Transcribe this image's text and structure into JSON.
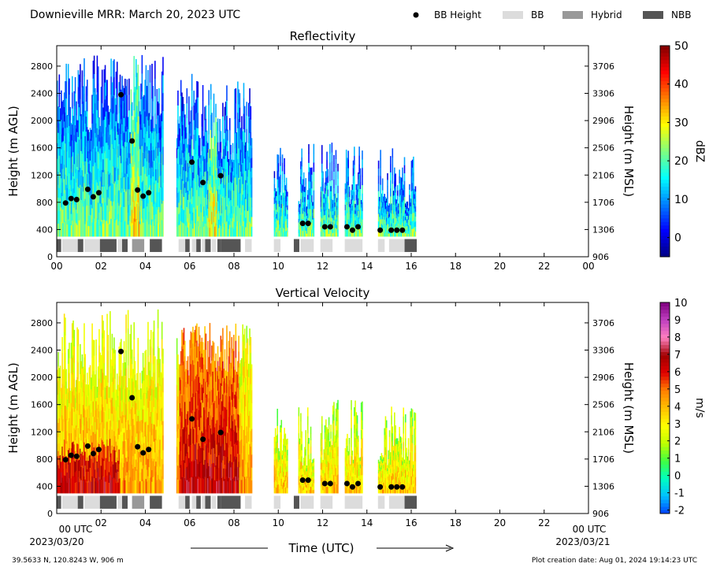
{
  "header": {
    "title": "Downieville MRR:  March 20, 2023 UTC",
    "legend": [
      {
        "label": "BB Height",
        "kind": "dot",
        "color": "#000000"
      },
      {
        "label": "BB",
        "kind": "box",
        "color": "#dcdcdc"
      },
      {
        "label": "Hybrid",
        "kind": "box",
        "color": "#999999"
      },
      {
        "label": "NBB",
        "kind": "box",
        "color": "#555555"
      }
    ]
  },
  "footer": {
    "location": "39.5633 N, 120.8243 W, 906 m",
    "creation": "Plot creation date: Aug 01, 2024 19:14:23 UTC",
    "start_time": "00 UTC",
    "start_date": "2023/03/20",
    "end_time": "00 UTC",
    "end_date": "2023/03/21",
    "time_label": "Time (UTC)"
  },
  "chart_data": [
    {
      "type": "heatmap",
      "title": "Reflectivity",
      "ylabel": "Height (m AGL)",
      "y2label": "Height (m MSL)",
      "x_ticklabels": [
        "00",
        "02",
        "04",
        "06",
        "08",
        "10",
        "12",
        "14",
        "16",
        "18",
        "20",
        "22",
        "00"
      ],
      "xlim": [
        0,
        24
      ],
      "ylim": [
        0,
        3100
      ],
      "y_ticks": [
        0,
        400,
        800,
        1200,
        1600,
        2000,
        2400,
        2800
      ],
      "y2_ticks": [
        906,
        1306,
        1706,
        2106,
        2506,
        2906,
        3306,
        3706
      ],
      "colorbar": {
        "label": "dBZ",
        "min": -5,
        "max": 50,
        "ticks": [
          0,
          10,
          20,
          30,
          40,
          50
        ],
        "colors": [
          "#00007f",
          "#0000ff",
          "#0080ff",
          "#00ffff",
          "#80ff80",
          "#ffff00",
          "#ff8000",
          "#ff0000",
          "#7f0000"
        ]
      },
      "segments": [
        [
          0,
          4.8
        ],
        [
          5.4,
          8.8
        ],
        [
          9.8,
          10.4
        ],
        [
          10.9,
          11.6
        ],
        [
          11.9,
          12.7
        ],
        [
          13.0,
          13.8
        ],
        [
          14.5,
          16.2
        ]
      ],
      "bb_height": [
        [
          0.4,
          790
        ],
        [
          0.65,
          855
        ],
        [
          0.9,
          840
        ],
        [
          1.4,
          990
        ],
        [
          1.65,
          880
        ],
        [
          1.9,
          940
        ],
        [
          2.9,
          2380
        ],
        [
          3.4,
          1700
        ],
        [
          3.65,
          980
        ],
        [
          3.9,
          890
        ],
        [
          4.15,
          940
        ],
        [
          6.1,
          1390
        ],
        [
          6.6,
          1090
        ],
        [
          7.4,
          1190
        ],
        [
          11.1,
          490
        ],
        [
          11.35,
          490
        ],
        [
          12.1,
          440
        ],
        [
          12.35,
          440
        ],
        [
          13.1,
          440
        ],
        [
          13.35,
          390
        ],
        [
          13.6,
          440
        ],
        [
          14.6,
          390
        ],
        [
          15.1,
          390
        ],
        [
          15.35,
          390
        ],
        [
          15.6,
          390
        ]
      ],
      "bb_flags": [
        {
          "s": 0,
          "e": 0.2,
          "t": "NBB"
        },
        {
          "s": 0.25,
          "e": 0.95,
          "t": "BB"
        },
        {
          "s": 0.95,
          "e": 1.2,
          "t": "NBB"
        },
        {
          "s": 1.25,
          "e": 1.95,
          "t": "BB"
        },
        {
          "s": 1.95,
          "e": 2.7,
          "t": "NBB"
        },
        {
          "s": 2.75,
          "e": 2.95,
          "t": "BB"
        },
        {
          "s": 2.95,
          "e": 3.2,
          "t": "NBB"
        },
        {
          "s": 3.4,
          "e": 3.95,
          "t": "Hybrid"
        },
        {
          "s": 4.2,
          "e": 4.75,
          "t": "NBB"
        },
        {
          "s": 5.5,
          "e": 5.8,
          "t": "BB"
        },
        {
          "s": 5.8,
          "e": 6.0,
          "t": "NBB"
        },
        {
          "s": 6.1,
          "e": 6.3,
          "t": "BB"
        },
        {
          "s": 6.3,
          "e": 6.5,
          "t": "NBB"
        },
        {
          "s": 6.55,
          "e": 6.7,
          "t": "BB"
        },
        {
          "s": 6.7,
          "e": 6.95,
          "t": "NBB"
        },
        {
          "s": 7.0,
          "e": 7.2,
          "t": "BB"
        },
        {
          "s": 7.25,
          "e": 7.4,
          "t": "NBB"
        },
        {
          "s": 7.4,
          "e": 8.3,
          "t": "NBB"
        },
        {
          "s": 8.5,
          "e": 8.8,
          "t": "BB"
        },
        {
          "s": 9.8,
          "e": 10.1,
          "t": "BB"
        },
        {
          "s": 10.7,
          "e": 10.95,
          "t": "NBB"
        },
        {
          "s": 11.0,
          "e": 11.6,
          "t": "BB"
        },
        {
          "s": 11.9,
          "e": 12.45,
          "t": "BB"
        },
        {
          "s": 13.0,
          "e": 13.8,
          "t": "BB"
        },
        {
          "s": 14.5,
          "e": 14.8,
          "t": "BB"
        },
        {
          "s": 15.0,
          "e": 15.7,
          "t": "BB"
        },
        {
          "s": 15.7,
          "e": 16.25,
          "t": "NBB"
        }
      ]
    },
    {
      "type": "heatmap",
      "title": "Vertical Velocity",
      "ylabel": "Height (m AGL)",
      "y2label": "Height (m MSL)",
      "x_ticklabels": [
        "",
        "02",
        "04",
        "06",
        "08",
        "10",
        "12",
        "14",
        "16",
        "18",
        "20",
        "22",
        ""
      ],
      "xlim": [
        0,
        24
      ],
      "ylim": [
        0,
        3100
      ],
      "y_ticks": [
        0,
        400,
        800,
        1200,
        1600,
        2000,
        2400,
        2800
      ],
      "y2_ticks": [
        906,
        1306,
        1706,
        2106,
        2506,
        2906,
        3306,
        3706
      ],
      "colorbar": {
        "label": "m/s",
        "min": -2.2,
        "max": 10,
        "ticks": [
          -2,
          -1,
          0,
          1,
          2,
          3,
          4,
          5,
          6,
          7,
          8,
          9,
          10
        ],
        "colors": [
          "#0040ff",
          "#00c0ff",
          "#00ffc0",
          "#40ff40",
          "#c0ff00",
          "#ffff00",
          "#ffc000",
          "#ff8000",
          "#e00000",
          "#a00000",
          "#ff80c0",
          "#c040c0",
          "#800080"
        ]
      },
      "segments": [
        [
          0,
          4.8
        ],
        [
          5.4,
          8.8
        ],
        [
          9.8,
          10.4
        ],
        [
          10.9,
          11.6
        ],
        [
          11.9,
          12.7
        ],
        [
          13.0,
          13.8
        ],
        [
          14.5,
          16.2
        ]
      ],
      "bb_height": [
        [
          0.4,
          790
        ],
        [
          0.65,
          855
        ],
        [
          0.9,
          840
        ],
        [
          1.4,
          990
        ],
        [
          1.65,
          880
        ],
        [
          1.9,
          940
        ],
        [
          2.9,
          2380
        ],
        [
          3.4,
          1700
        ],
        [
          3.65,
          980
        ],
        [
          3.9,
          890
        ],
        [
          4.15,
          940
        ],
        [
          6.1,
          1390
        ],
        [
          6.6,
          1090
        ],
        [
          7.4,
          1190
        ],
        [
          11.1,
          490
        ],
        [
          11.35,
          490
        ],
        [
          12.1,
          440
        ],
        [
          12.35,
          440
        ],
        [
          13.1,
          440
        ],
        [
          13.35,
          390
        ],
        [
          13.6,
          440
        ],
        [
          14.6,
          390
        ],
        [
          15.1,
          390
        ],
        [
          15.35,
          390
        ],
        [
          15.6,
          390
        ]
      ],
      "bb_flags": [
        {
          "s": 0,
          "e": 0.2,
          "t": "NBB"
        },
        {
          "s": 0.25,
          "e": 0.95,
          "t": "BB"
        },
        {
          "s": 0.95,
          "e": 1.2,
          "t": "NBB"
        },
        {
          "s": 1.25,
          "e": 1.95,
          "t": "BB"
        },
        {
          "s": 1.95,
          "e": 2.7,
          "t": "NBB"
        },
        {
          "s": 2.75,
          "e": 2.95,
          "t": "BB"
        },
        {
          "s": 2.95,
          "e": 3.2,
          "t": "NBB"
        },
        {
          "s": 3.4,
          "e": 3.95,
          "t": "Hybrid"
        },
        {
          "s": 4.2,
          "e": 4.75,
          "t": "NBB"
        },
        {
          "s": 5.5,
          "e": 5.8,
          "t": "BB"
        },
        {
          "s": 5.8,
          "e": 6.0,
          "t": "NBB"
        },
        {
          "s": 6.1,
          "e": 6.3,
          "t": "BB"
        },
        {
          "s": 6.3,
          "e": 6.5,
          "t": "NBB"
        },
        {
          "s": 6.55,
          "e": 6.7,
          "t": "BB"
        },
        {
          "s": 6.7,
          "e": 6.95,
          "t": "NBB"
        },
        {
          "s": 7.0,
          "e": 7.2,
          "t": "BB"
        },
        {
          "s": 7.25,
          "e": 7.4,
          "t": "NBB"
        },
        {
          "s": 7.4,
          "e": 8.3,
          "t": "NBB"
        },
        {
          "s": 8.5,
          "e": 8.8,
          "t": "BB"
        },
        {
          "s": 9.8,
          "e": 10.1,
          "t": "BB"
        },
        {
          "s": 10.7,
          "e": 10.95,
          "t": "NBB"
        },
        {
          "s": 11.0,
          "e": 11.6,
          "t": "BB"
        },
        {
          "s": 11.9,
          "e": 12.45,
          "t": "BB"
        },
        {
          "s": 13.0,
          "e": 13.8,
          "t": "BB"
        },
        {
          "s": 14.5,
          "e": 14.8,
          "t": "BB"
        },
        {
          "s": 15.0,
          "e": 15.7,
          "t": "BB"
        },
        {
          "s": 15.7,
          "e": 16.25,
          "t": "NBB"
        }
      ]
    }
  ]
}
